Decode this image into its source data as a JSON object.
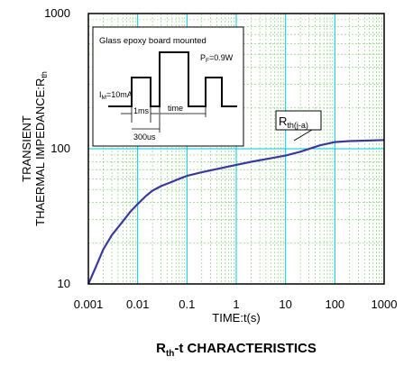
{
  "colors": {
    "major_grid": "#00c8d8",
    "minor_grid": "#7ccf6e",
    "curve": "#3a3a9c",
    "frame": "#000000"
  },
  "chart_data": {
    "type": "line",
    "title_main": "R",
    "title_sub": "th",
    "title_rest": "-t CHARACTERISTICS",
    "xlabel": "TIME:t(s)",
    "ylabel_line1": "TRANSIENT",
    "ylabel_line2_main": "THAERMAL IMPEDANCE:R",
    "ylabel_line2_sub": "th",
    "x_scale": "log",
    "y_scale": "log",
    "xlim": [
      0.001,
      1000
    ],
    "ylim": [
      10,
      1000
    ],
    "x_ticks": [
      0.001,
      0.01,
      0.1,
      1,
      10,
      100,
      1000
    ],
    "x_tick_labels": [
      "0.001",
      "0.01",
      "0.1",
      "1",
      "10",
      "100",
      "1000"
    ],
    "y_ticks": [
      10,
      100,
      1000
    ],
    "y_tick_labels": [
      "10",
      "100",
      "1000"
    ],
    "grid": true,
    "series": [
      {
        "name": "Rth(j-a)",
        "x": [
          0.001,
          0.0015,
          0.002,
          0.003,
          0.005,
          0.007,
          0.01,
          0.015,
          0.02,
          0.03,
          0.05,
          0.07,
          0.1,
          0.2,
          0.5,
          1,
          2,
          5,
          10,
          20,
          50,
          100,
          200,
          500,
          1000
        ],
        "y": [
          10,
          14,
          18,
          23,
          29,
          34,
          39,
          45,
          49,
          53,
          57,
          60,
          63,
          67,
          72,
          76,
          80,
          85,
          89,
          95,
          106,
          112,
          114,
          115,
          116
        ]
      }
    ],
    "series_label_main": "R",
    "series_label_sub": "th(j-a)",
    "inset": {
      "title": "Glass epoxy board mounted",
      "im_label_main": "I",
      "im_label_sub": "M",
      "im_label_rest": "=10mA",
      "pf_label_main": "P",
      "pf_label_sub": "F",
      "pf_label_rest": "=0.9W",
      "pulse_label": "1ms",
      "time_label": "time",
      "period_label": "300us"
    }
  }
}
